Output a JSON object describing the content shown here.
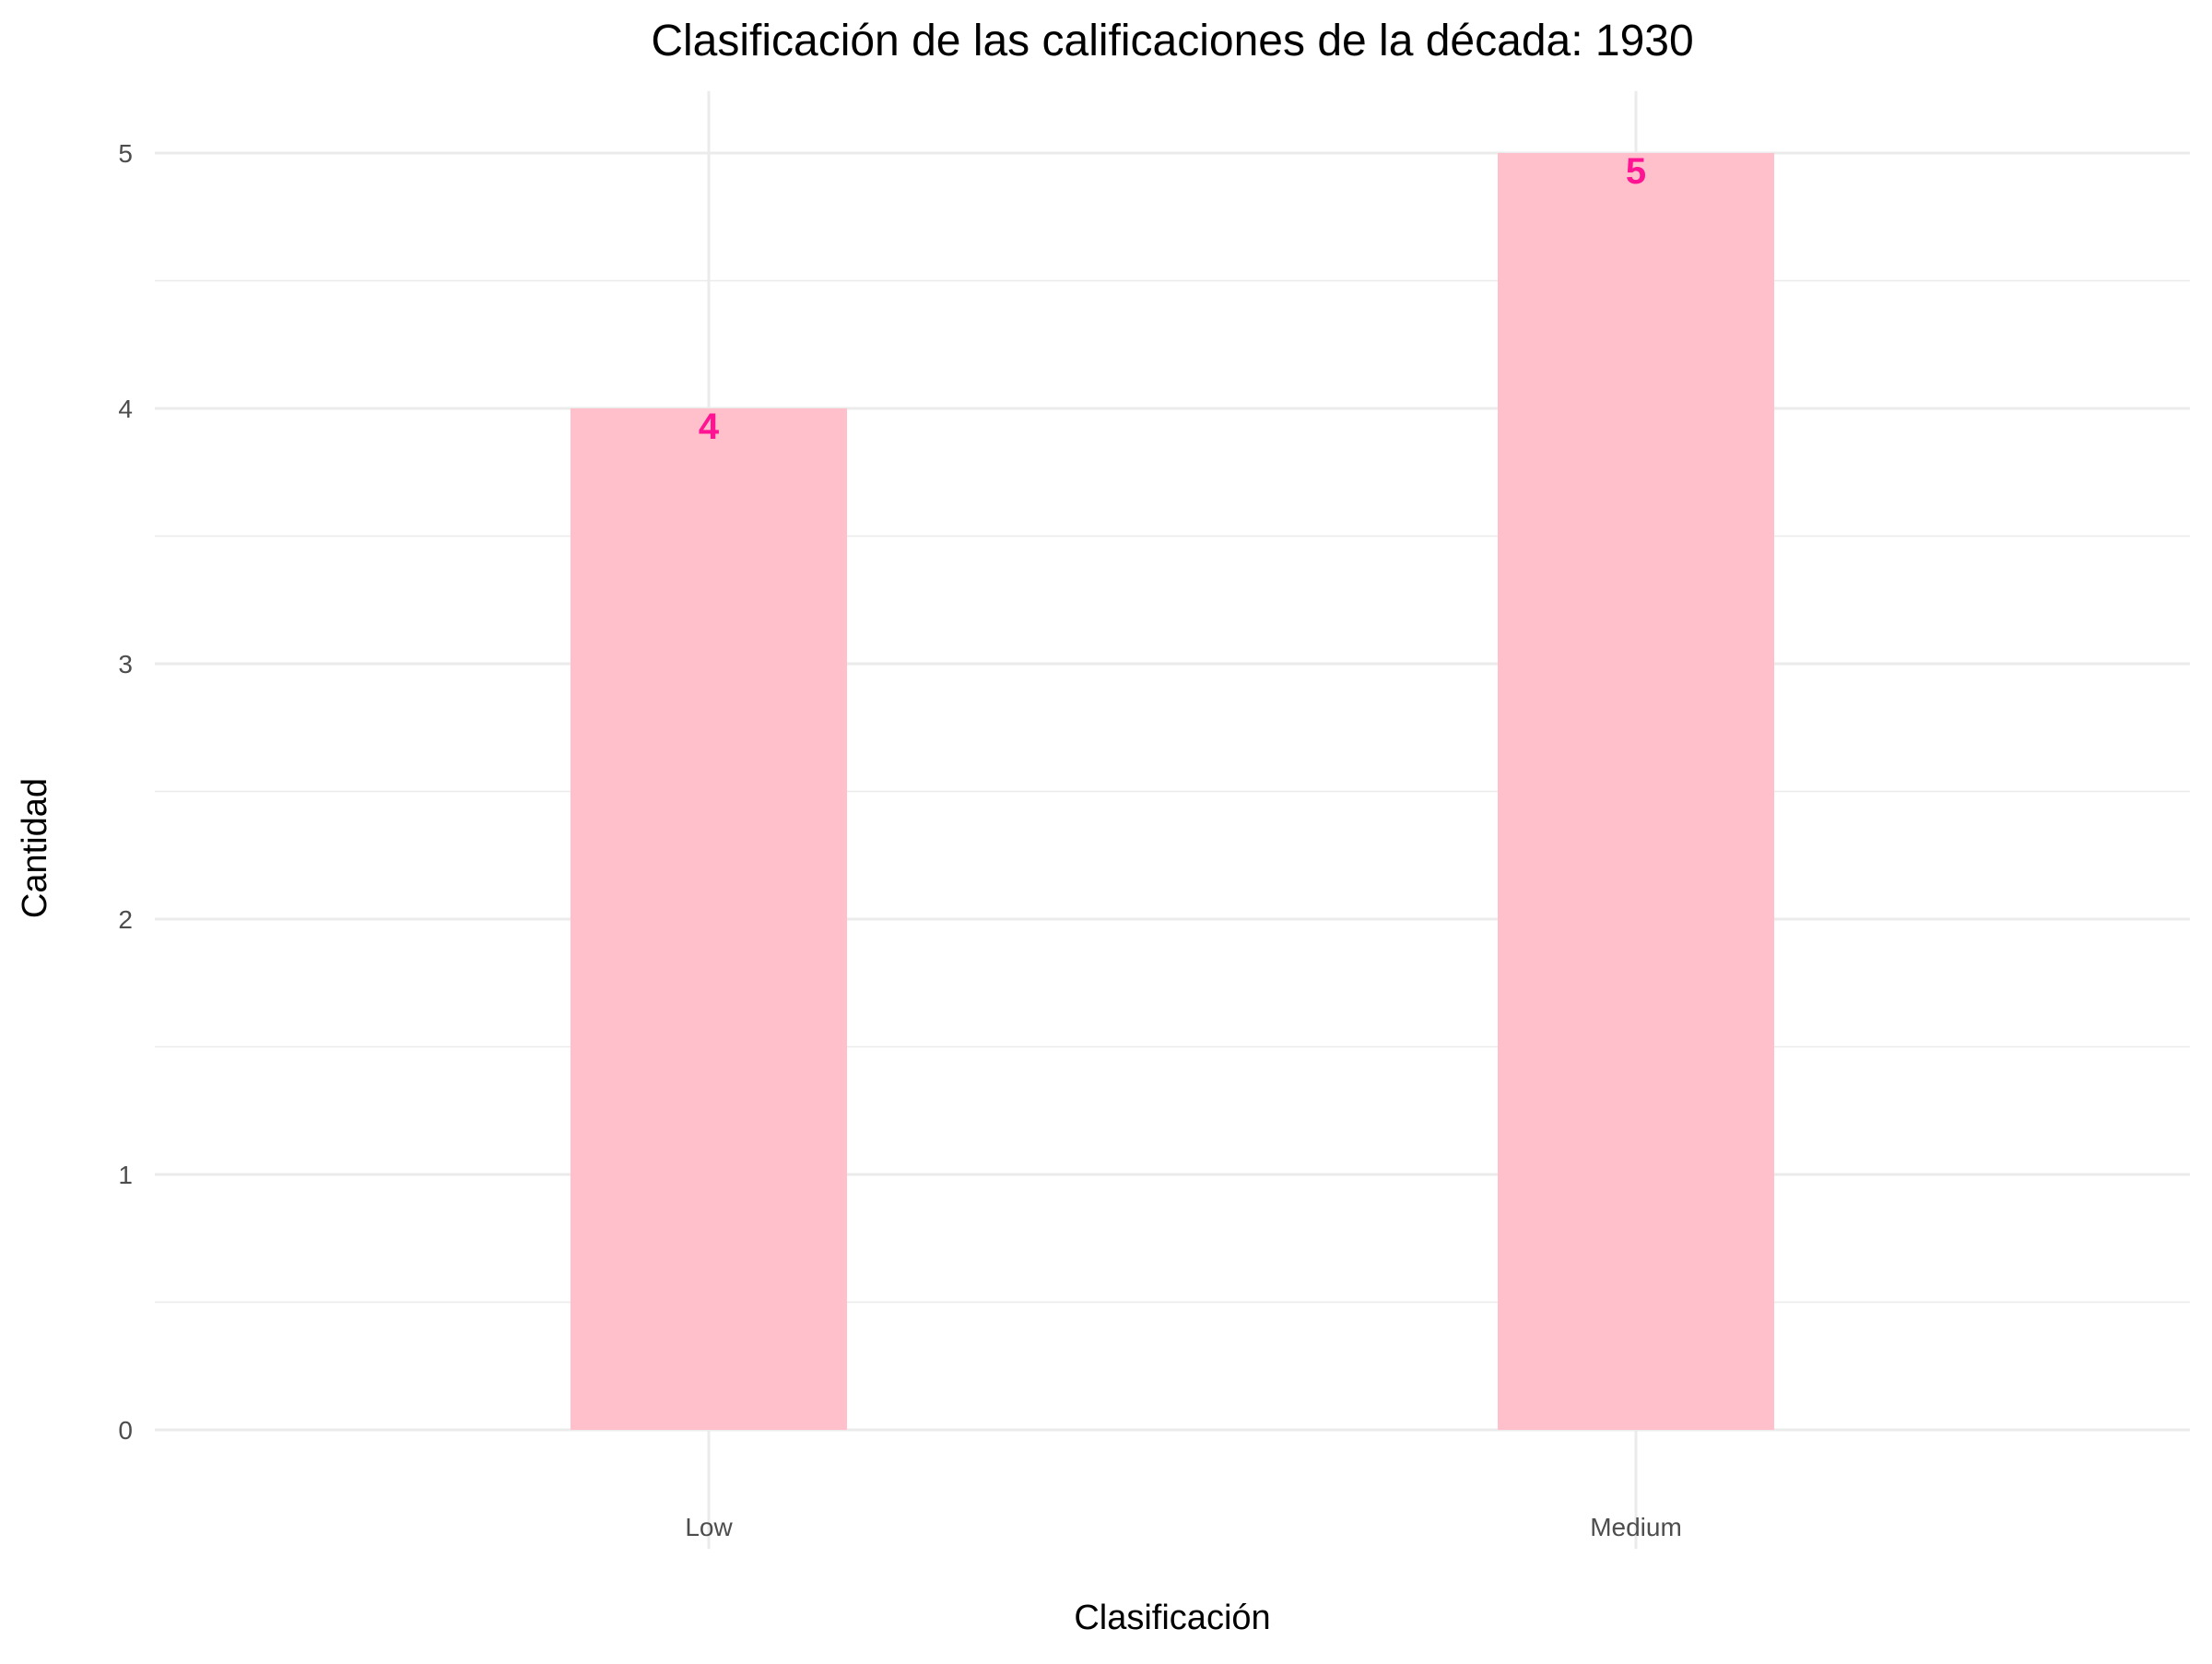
{
  "chart_data": {
    "type": "bar",
    "title": "Clasificación de las calificaciones de la década: 1930",
    "xlabel": "Clasificación",
    "ylabel": "Cantidad",
    "categories": [
      "Low",
      "Medium"
    ],
    "values": [
      4,
      5
    ],
    "ylim": [
      0,
      5.25
    ],
    "yticks": [
      "0",
      "1",
      "2",
      "3",
      "4",
      "5"
    ],
    "grid": true,
    "legend": "none",
    "bar_color": "#ffc0cb",
    "label_color": "#ff1493"
  }
}
